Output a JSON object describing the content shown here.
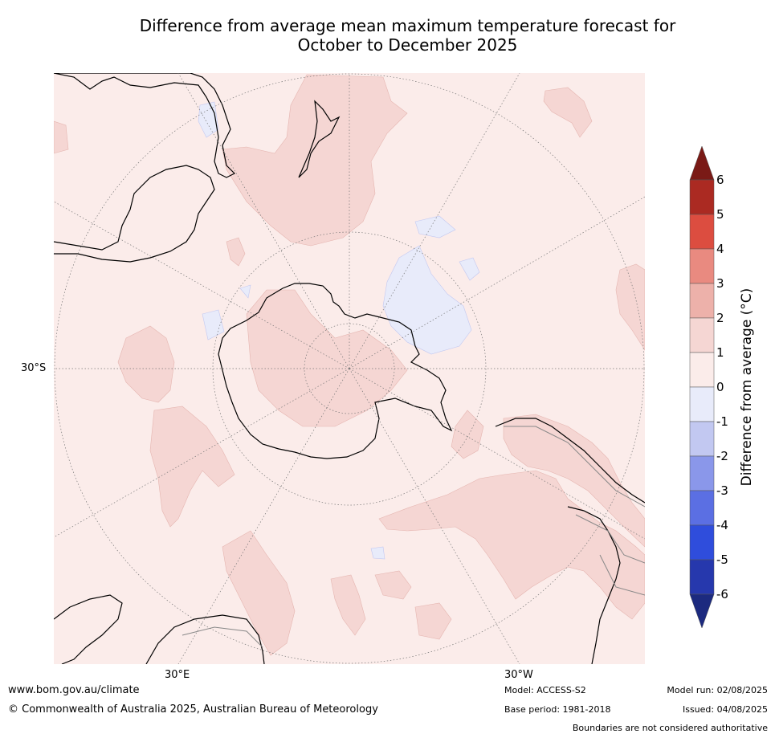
{
  "title": {
    "line1": "Difference from average mean maximum temperature forecast for",
    "line2": "October to December 2025"
  },
  "map": {
    "projection": "south-polar-stereographic",
    "lat_label_left": "30°S",
    "lon_label_bottom_left": "30°E",
    "lon_label_bottom_right": "30°W"
  },
  "colorbar": {
    "label": "Difference from average (°C)",
    "ticks": [
      "6",
      "5",
      "4",
      "3",
      "2",
      "1",
      "0",
      "-1",
      "-2",
      "-3",
      "-4",
      "-5",
      "-6"
    ],
    "colors": {
      "above_6": "#7a1a16",
      "5_to_6": "#ab2a22",
      "4_to_5": "#dc4d40",
      "3_to_4": "#e98a80",
      "2_to_3": "#edb1aa",
      "1_to_2": "#f5d6d3",
      "0_to_1": "#fbecea",
      "neg1_to_0": "#e8ebfa",
      "neg2_to_neg1": "#c2c8f1",
      "neg3_to_neg2": "#8a97ea",
      "neg4_to_neg3": "#5b6fe3",
      "neg5_to_neg4": "#2f4ddc",
      "neg6_to_neg5": "#2638ad",
      "below_neg6": "#1c2a7f"
    }
  },
  "footer": {
    "website": "www.bom.gov.au/climate",
    "copyright": "© Commonwealth of Australia 2025, Australian Bureau of Meteorology",
    "model": "Model: ACCESS-S2",
    "base_period": "Base period: 1981-2018",
    "model_run": "Model run: 02/08/2025",
    "issued": "Issued: 04/08/2025",
    "disclaimer": "Boundaries are not considered authoritative"
  }
}
